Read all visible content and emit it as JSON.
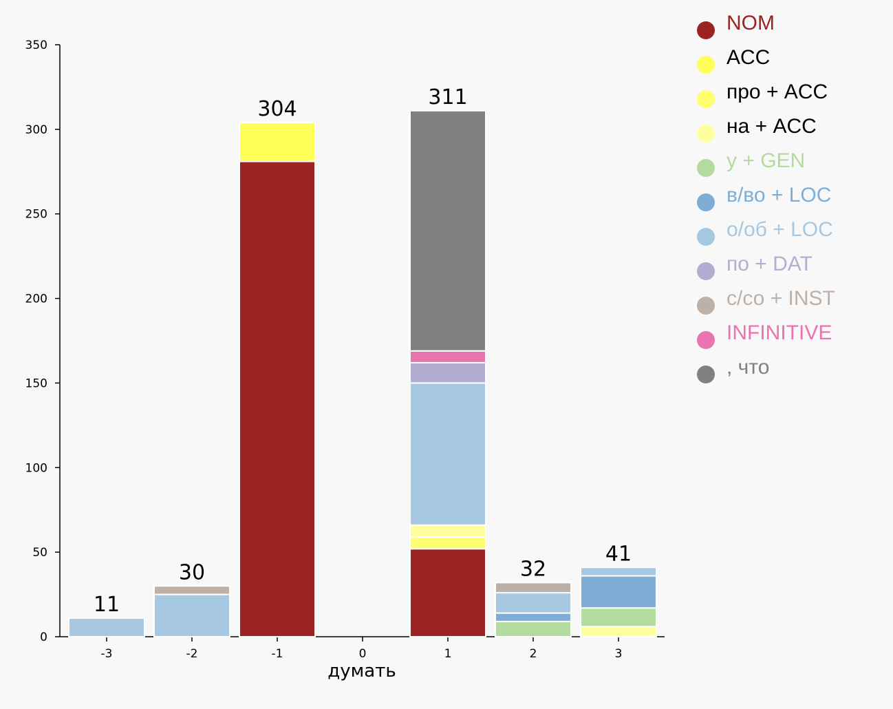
{
  "chart_data": {
    "type": "bar",
    "stacked": true,
    "xlabel": "думать",
    "ylabel": "",
    "ylim": [
      0,
      350
    ],
    "yticks": [
      0,
      50,
      100,
      150,
      200,
      250,
      300,
      350
    ],
    "categories": [
      "-3",
      "-2",
      "-1",
      "0",
      "1",
      "2",
      "3"
    ],
    "totals": [
      "11",
      "30",
      "304",
      "",
      "311",
      "32",
      "41"
    ],
    "legend_position": "top-right",
    "grid": false,
    "series": [
      {
        "name": "NOM",
        "color": "#9b2321",
        "values": [
          0,
          0,
          281,
          0,
          52,
          0,
          0
        ]
      },
      {
        "name": "ACC",
        "color": "#ffff5a",
        "values": [
          0,
          0,
          23,
          0,
          0,
          0,
          0
        ]
      },
      {
        "name": "про + ACC",
        "color": "#ffff70",
        "values": [
          0,
          0,
          0,
          0,
          7,
          0,
          0
        ]
      },
      {
        "name": "на + ACC",
        "color": "#ffffa0",
        "values": [
          0,
          0,
          0,
          0,
          7,
          0,
          6
        ]
      },
      {
        "name": "у + GEN",
        "color": "#b3dba0",
        "values": [
          0,
          0,
          0,
          0,
          0,
          9,
          11
        ]
      },
      {
        "name": "в/во + LOC",
        "color": "#7eaed6",
        "values": [
          0,
          0,
          0,
          0,
          0,
          5,
          19
        ]
      },
      {
        "name": "о/об + LOC",
        "color": "#a6c8e0",
        "values": [
          11,
          25,
          0,
          0,
          84,
          12,
          5
        ]
      },
      {
        "name": "по + DAT",
        "color": "#b1aed1",
        "values": [
          0,
          0,
          0,
          0,
          12,
          0,
          0
        ]
      },
      {
        "name": "с/со + INST",
        "color": "#bdb0a7",
        "values": [
          0,
          5,
          0,
          0,
          0,
          6,
          0
        ]
      },
      {
        "name": "INFINITIVE",
        "color": "#e874b0",
        "values": [
          0,
          0,
          0,
          0,
          7,
          0,
          0
        ]
      },
      {
        "name": ", что",
        "color": "#808080",
        "values": [
          0,
          0,
          0,
          0,
          142,
          0,
          0
        ]
      }
    ]
  }
}
